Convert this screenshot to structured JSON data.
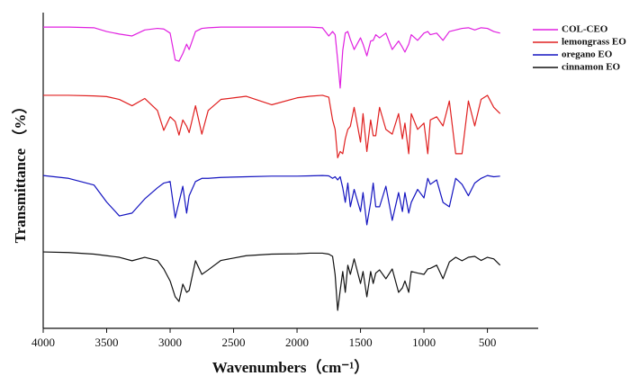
{
  "chart_data": {
    "type": "line",
    "xlabel": "Wavenumbers（cm⁻¹）",
    "ylabel": "Transmittance （%）",
    "xlim": [
      4000,
      100
    ],
    "xticks": [
      4000,
      3500,
      3000,
      2500,
      2000,
      1500,
      1000,
      500
    ],
    "ylim": [
      0,
      100
    ],
    "legend": "top-right",
    "x": [
      4000,
      3800,
      3600,
      3500,
      3400,
      3300,
      3200,
      3100,
      3050,
      3000,
      2960,
      2930,
      2900,
      2870,
      2850,
      2800,
      2750,
      2700,
      2600,
      2400,
      2200,
      2000,
      1900,
      1800,
      1750,
      1720,
      1700,
      1680,
      1660,
      1640,
      1620,
      1600,
      1580,
      1550,
      1500,
      1480,
      1450,
      1420,
      1400,
      1380,
      1350,
      1300,
      1250,
      1200,
      1170,
      1150,
      1120,
      1100,
      1050,
      1000,
      970,
      950,
      900,
      850,
      800,
      750,
      700,
      650,
      600,
      550,
      500,
      450,
      400
    ],
    "series": [
      {
        "name": "COL-CEO",
        "color": "#e020e0",
        "values": [
          95.4,
          95.4,
          95.2,
          94.0,
          93.2,
          92.6,
          94.5,
          95.0,
          94.8,
          93.5,
          85,
          84.6,
          87,
          90,
          88.3,
          94,
          95,
          95.2,
          95.4,
          95.4,
          95.4,
          95.4,
          95.4,
          95.2,
          92.6,
          94,
          93,
          85,
          76.1,
          88,
          93.5,
          94,
          91.5,
          88.3,
          92,
          90,
          86.3,
          91,
          91.2,
          93,
          92,
          93.5,
          88.3,
          91,
          89,
          87.5,
          90,
          93,
          91.2,
          93.5,
          94,
          93,
          93.5,
          91.2,
          94,
          94.5,
          95,
          95.2,
          94.5,
          95.2,
          95,
          94,
          93.5
        ]
      },
      {
        "name": "lemongrass EO",
        "color": "#e02020",
        "values": [
          73.8,
          73.8,
          73.6,
          73.4,
          72.5,
          70.5,
          72.8,
          69,
          62.7,
          67,
          65.5,
          61.2,
          66,
          64,
          62,
          70.5,
          61.5,
          69,
          72.5,
          73.5,
          70.8,
          73,
          73.5,
          73.8,
          73.2,
          66,
          63,
          54,
          56,
          55.3,
          60,
          63,
          64,
          70,
          59,
          68,
          56,
          66,
          61,
          61,
          70,
          63,
          61.5,
          68,
          60,
          65,
          55.3,
          68,
          63,
          65,
          55.3,
          66,
          67,
          64.1,
          72,
          55.3,
          55.3,
          72,
          64.1,
          72.5,
          73.8,
          70,
          68
        ]
      },
      {
        "name": "oregano EO",
        "color": "#1414c0",
        "values": [
          48.4,
          47.5,
          45.4,
          40,
          35.6,
          36.5,
          41,
          44.5,
          46,
          46.5,
          35,
          40,
          45,
          36.5,
          42,
          46.5,
          47.5,
          47.5,
          47.8,
          48,
          48.2,
          48.2,
          48.3,
          48.4,
          48.3,
          47.5,
          48,
          47,
          48,
          44.5,
          39.9,
          46,
          38.5,
          44,
          37,
          43,
          32.8,
          39.9,
          46,
          38.5,
          38.5,
          45,
          34.2,
          43,
          37,
          43,
          36.5,
          39.9,
          44,
          41.3,
          47.5,
          45.6,
          47,
          39.9,
          38.5,
          47.5,
          45.6,
          42,
          46,
          47.5,
          48.4,
          48,
          48.2
        ]
      },
      {
        "name": "cinnamon EO",
        "color": "#111111",
        "values": [
          24.2,
          24,
          23.5,
          23,
          22.5,
          21.4,
          22.5,
          21.5,
          18.8,
          15,
          10,
          8.5,
          14,
          11.4,
          12,
          21.4,
          17.1,
          18.5,
          21.5,
          23,
          23.5,
          23.6,
          23.8,
          23.8,
          23.5,
          22.8,
          17,
          5.7,
          12,
          18,
          11.4,
          20,
          17.1,
          22,
          14.2,
          18,
          9.98,
          18,
          14.2,
          17.5,
          18.5,
          15.7,
          18.8,
          11.4,
          12.8,
          15,
          11.4,
          18,
          17.5,
          17.1,
          18.8,
          19,
          20,
          15.7,
          21,
          22.5,
          21.4,
          22.5,
          22.8,
          21.5,
          22.5,
          22,
          20
        ]
      }
    ]
  }
}
